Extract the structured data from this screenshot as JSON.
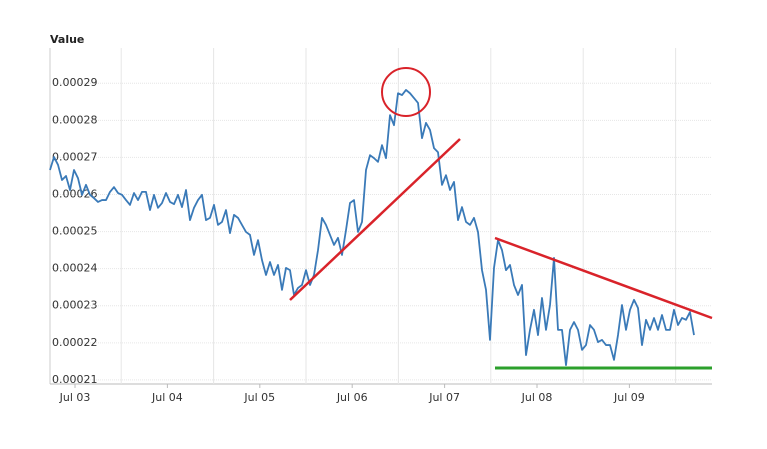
{
  "chart_data": {
    "type": "line",
    "y_label": "Value",
    "color": "#3a7ab8",
    "grid": true,
    "ylim": [
      0.0002089,
      0.0002995
    ],
    "yticks": [
      0.00021,
      0.00022,
      0.00023,
      0.00024,
      0.00025,
      0.00026,
      0.00027,
      0.00028,
      0.00029
    ],
    "xlim": [
      0,
      165.5
    ],
    "xticks": [
      {
        "value": 6.25,
        "label": "Jul 03"
      },
      {
        "value": 29.35,
        "label": "Jul 04"
      },
      {
        "value": 52.45,
        "label": "Jul 05"
      },
      {
        "value": 75.55,
        "label": "Jul 06"
      },
      {
        "value": 98.65,
        "label": "Jul 07"
      },
      {
        "value": 121.75,
        "label": "Jul 08"
      },
      {
        "value": 144.85,
        "label": "Jul 09"
      }
    ],
    "values": [
      0.0002666,
      0.0002701,
      0.000268,
      0.0002639,
      0.000265,
      0.0002612,
      0.0002666,
      0.0002644,
      0.0002599,
      0.0002626,
      0.0002599,
      0.000259,
      0.000258,
      0.0002585,
      0.0002585,
      0.0002607,
      0.000262,
      0.0002604,
      0.0002599,
      0.0002585,
      0.0002572,
      0.0002604,
      0.0002585,
      0.0002607,
      0.0002607,
      0.0002558,
      0.0002599,
      0.0002564,
      0.0002577,
      0.0002604,
      0.000258,
      0.0002574,
      0.0002599,
      0.0002566,
      0.0002612,
      0.0002531,
      0.0002564,
      0.0002585,
      0.0002599,
      0.0002531,
      0.0002537,
      0.0002572,
      0.0002518,
      0.0002526,
      0.0002558,
      0.0002496,
      0.0002545,
      0.0002537,
      0.0002518,
      0.0002499,
      0.0002491,
      0.0002437,
      0.0002477,
      0.0002423,
      0.0002383,
      0.0002418,
      0.0002383,
      0.000241,
      0.0002343,
      0.0002402,
      0.0002396,
      0.0002329,
      0.0002348,
      0.0002356,
      0.0002396,
      0.0002356,
      0.0002383,
      0.000245,
      0.0002537,
      0.0002518,
      0.0002491,
      0.0002464,
      0.0002483,
      0.0002437,
      0.0002504,
      0.0002577,
      0.0002585,
      0.0002499,
      0.0002526,
      0.0002666,
      0.0002706,
      0.0002698,
      0.0002688,
      0.0002733,
      0.0002698,
      0.0002814,
      0.0002787,
      0.0002873,
      0.0002868,
      0.0002882,
      0.0002873,
      0.000286,
      0.0002847,
      0.0002752,
      0.0002793,
      0.0002774,
      0.0002725,
      0.0002714,
      0.0002626,
      0.0002652,
      0.0002612,
      0.0002634,
      0.0002531,
      0.0002566,
      0.0002526,
      0.0002518,
      0.0002537,
      0.0002499,
      0.0002396,
      0.0002343,
      0.0002208,
      0.0002402,
      0.0002477,
      0.000245,
      0.0002396,
      0.000241,
      0.0002356,
      0.0002329,
      0.0002356,
      0.0002167,
      0.0002235,
      0.0002289,
      0.0002221,
      0.0002321,
      0.0002235,
      0.0002302,
      0.0002429,
      0.0002235,
      0.0002235,
      0.000214,
      0.0002235,
      0.0002256,
      0.0002235,
      0.0002181,
      0.0002194,
      0.0002248,
      0.0002235,
      0.0002202,
      0.0002208,
      0.0002194,
      0.0002194,
      0.0002154,
      0.0002221,
      0.0002302,
      0.0002235,
      0.0002289,
      0.0002316,
      0.0002294,
      0.0002194,
      0.0002262,
      0.0002235,
      0.0002267,
      0.0002235,
      0.0002275,
      0.0002235,
      0.0002235,
      0.0002289,
      0.0002248,
      0.0002267,
      0.0002262,
      0.0002283,
      0.0002221
    ]
  }
}
